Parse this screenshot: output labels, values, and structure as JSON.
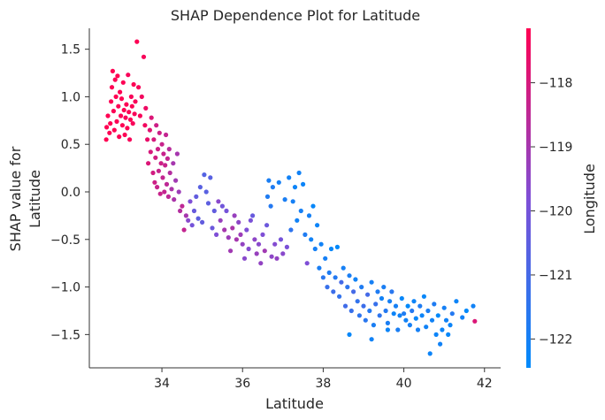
{
  "chart_data": {
    "type": "scatter",
    "title": "SHAP Dependence Plot for Latitude",
    "xlabel": "Latitude",
    "ylabel_line1": "SHAP value for",
    "ylabel_line2": "Latitude",
    "xlim": [
      32.2,
      42.4
    ],
    "ylim": [
      -1.85,
      1.72
    ],
    "xticks": [
      34,
      36,
      38,
      40,
      42
    ],
    "xtick_labels": [
      "34",
      "36",
      "38",
      "40",
      "42"
    ],
    "yticks": [
      1.5,
      1.0,
      0.5,
      0.0,
      -0.5,
      -1.0,
      -1.5
    ],
    "ytick_labels": [
      "1.5",
      "1.0",
      "0.5",
      "0.0",
      "−0.5",
      "−1.0",
      "−1.5"
    ],
    "grid": false,
    "colorbar": {
      "label": "Longitude",
      "range": [
        -122.45,
        -117.15
      ],
      "ticks": [
        -118,
        -119,
        -120,
        -121,
        -122
      ],
      "tick_labels": [
        "−118",
        "−119",
        "−120",
        "−121",
        "−122"
      ],
      "low_color": "#008afb",
      "mid_color": "#7f4fd6",
      "high_color": "#ff0052"
    },
    "points": [
      [
        32.62,
        0.55,
        -117.1
      ],
      [
        32.63,
        0.68,
        -117.1
      ],
      [
        32.66,
        0.8,
        -117.1
      ],
      [
        32.7,
        0.62,
        -117.2
      ],
      [
        32.72,
        0.72,
        -117.1
      ],
      [
        32.74,
        0.95,
        -117.2
      ],
      [
        32.76,
        1.1,
        -117.2
      ],
      [
        32.78,
        1.27,
        -117.1
      ],
      [
        32.8,
        0.85,
        -117.2
      ],
      [
        32.82,
        0.65,
        -117.1
      ],
      [
        32.84,
        1.18,
        -117.2
      ],
      [
        32.86,
        1.0,
        -117.1
      ],
      [
        32.88,
        0.74,
        -117.2
      ],
      [
        32.9,
        1.22,
        -117.1
      ],
      [
        32.92,
        0.9,
        -117.2
      ],
      [
        32.94,
        0.58,
        -117.2
      ],
      [
        32.96,
        1.05,
        -117.1
      ],
      [
        32.98,
        0.8,
        -117.2
      ],
      [
        33.0,
        0.98,
        -117.1
      ],
      [
        33.02,
        0.7,
        -117.2
      ],
      [
        33.04,
        1.15,
        -117.2
      ],
      [
        33.06,
        0.86,
        -117.1
      ],
      [
        33.08,
        0.6,
        -117.2
      ],
      [
        33.1,
        0.78,
        -117.3
      ],
      [
        33.12,
        0.92,
        -117.2
      ],
      [
        33.14,
        0.67,
        -117.2
      ],
      [
        33.16,
        1.23,
        -117.3
      ],
      [
        33.18,
        0.84,
        -117.2
      ],
      [
        33.2,
        0.55,
        -117.3
      ],
      [
        33.22,
        0.76,
        -117.2
      ],
      [
        33.24,
        1.0,
        -117.3
      ],
      [
        33.26,
        0.9,
        -117.2
      ],
      [
        33.28,
        0.72,
        -117.3
      ],
      [
        33.3,
        1.13,
        -117.2
      ],
      [
        33.32,
        0.82,
        -117.3
      ],
      [
        33.34,
        0.95,
        -117.3
      ],
      [
        33.38,
        1.58,
        -117.2
      ],
      [
        33.42,
        1.1,
        -117.3
      ],
      [
        33.46,
        0.8,
        -117.3
      ],
      [
        33.5,
        1.0,
        -117.4
      ],
      [
        33.55,
        1.42,
        -117.3
      ],
      [
        33.58,
        0.7,
        -117.4
      ],
      [
        33.6,
        0.88,
        -117.5
      ],
      [
        33.64,
        0.55,
        -117.6
      ],
      [
        33.66,
        0.3,
        -117.9
      ],
      [
        33.7,
        0.65,
        -117.8
      ],
      [
        33.72,
        0.42,
        -118.0
      ],
      [
        33.74,
        0.78,
        -117.9
      ],
      [
        33.78,
        0.2,
        -118.1
      ],
      [
        33.8,
        0.55,
        -118.0
      ],
      [
        33.82,
        0.1,
        -118.2
      ],
      [
        33.84,
        0.36,
        -118.1
      ],
      [
        33.86,
        0.7,
        -118.2
      ],
      [
        33.88,
        0.05,
        -118.3
      ],
      [
        33.9,
        0.45,
        -118.2
      ],
      [
        33.92,
        0.22,
        -118.3
      ],
      [
        33.94,
        0.62,
        -118.2
      ],
      [
        33.96,
        -0.02,
        -118.3
      ],
      [
        33.98,
        0.3,
        -118.2
      ],
      [
        34.0,
        0.5,
        -118.3
      ],
      [
        34.02,
        0.15,
        -118.4
      ],
      [
        34.04,
        0.4,
        -118.3
      ],
      [
        34.06,
        0.0,
        -118.4
      ],
      [
        34.08,
        0.28,
        -118.3
      ],
      [
        34.1,
        0.6,
        -118.4
      ],
      [
        34.12,
        0.08,
        -118.5
      ],
      [
        34.14,
        0.35,
        -118.4
      ],
      [
        34.16,
        -0.05,
        -118.5
      ],
      [
        34.18,
        0.45,
        -118.6
      ],
      [
        34.2,
        0.2,
        -118.7
      ],
      [
        34.24,
        0.03,
        -118.9
      ],
      [
        34.28,
        0.3,
        -119.0
      ],
      [
        34.3,
        -0.08,
        -118.9
      ],
      [
        34.34,
        0.12,
        -119.1
      ],
      [
        34.38,
        0.4,
        -119.0
      ],
      [
        34.42,
        0.0,
        -119.2
      ],
      [
        34.45,
        -0.2,
        -118.7
      ],
      [
        34.5,
        -0.15,
        -118.5
      ],
      [
        34.55,
        -0.4,
        -118.4
      ],
      [
        34.6,
        -0.25,
        -119.0
      ],
      [
        34.65,
        -0.3,
        -119.6
      ],
      [
        34.7,
        -0.1,
        -119.8
      ],
      [
        34.75,
        -0.35,
        -120.0
      ],
      [
        34.8,
        -0.2,
        -120.3
      ],
      [
        34.85,
        -0.05,
        -120.4
      ],
      [
        34.9,
        -0.28,
        -120.5
      ],
      [
        34.95,
        0.05,
        -120.6
      ],
      [
        35.0,
        -0.32,
        -120.4
      ],
      [
        35.05,
        0.18,
        -120.7
      ],
      [
        35.1,
        0.0,
        -120.6
      ],
      [
        35.15,
        -0.12,
        -120.5
      ],
      [
        35.2,
        0.15,
        -120.6
      ],
      [
        35.25,
        -0.38,
        -120.2
      ],
      [
        35.3,
        -0.2,
        -120.4
      ],
      [
        35.35,
        -0.45,
        -119.8
      ],
      [
        35.4,
        -0.1,
        -119.6
      ],
      [
        35.45,
        -0.3,
        -119.3
      ],
      [
        35.5,
        -0.15,
        -120.1
      ],
      [
        35.55,
        -0.4,
        -119.0
      ],
      [
        35.6,
        -0.2,
        -120.0
      ],
      [
        35.65,
        -0.48,
        -119.2
      ],
      [
        35.7,
        -0.62,
        -119.1
      ],
      [
        35.75,
        -0.38,
        -118.9
      ],
      [
        35.8,
        -0.25,
        -119.3
      ],
      [
        35.85,
        -0.5,
        -119.0
      ],
      [
        35.9,
        -0.32,
        -119.5
      ],
      [
        35.95,
        -0.45,
        -119.2
      ],
      [
        36.0,
        -0.55,
        -119.4
      ],
      [
        36.05,
        -0.7,
        -119.6
      ],
      [
        36.1,
        -0.4,
        -119.8
      ],
      [
        36.15,
        -0.6,
        -119.7
      ],
      [
        36.2,
        -0.3,
        -119.9
      ],
      [
        36.25,
        -0.25,
        -120.3
      ],
      [
        36.3,
        -0.5,
        -119.5
      ],
      [
        36.35,
        -0.65,
        -119.3
      ],
      [
        36.4,
        -0.55,
        -119.6
      ],
      [
        36.45,
        -0.75,
        -119.4
      ],
      [
        36.5,
        -0.45,
        -119.8
      ],
      [
        36.55,
        -0.62,
        -119.1
      ],
      [
        36.6,
        -0.35,
        -120.2
      ],
      [
        36.62,
        -0.05,
        -121.8
      ],
      [
        36.65,
        0.12,
        -121.9
      ],
      [
        36.7,
        -0.15,
        -121.7
      ],
      [
        36.72,
        -0.68,
        -119.5
      ],
      [
        36.75,
        0.05,
        -121.8
      ],
      [
        36.8,
        -0.55,
        -119.7
      ],
      [
        36.85,
        -0.7,
        -119.4
      ],
      [
        36.9,
        0.1,
        -122.0
      ],
      [
        36.95,
        -0.5,
        -120.0
      ],
      [
        37.0,
        -0.65,
        -119.6
      ],
      [
        37.05,
        -0.08,
        -121.9
      ],
      [
        37.1,
        -0.58,
        -119.9
      ],
      [
        37.15,
        0.15,
        -122.1
      ],
      [
        37.2,
        -0.4,
        -121.5
      ],
      [
        37.25,
        -0.1,
        -122.0
      ],
      [
        37.3,
        0.05,
        -122.2
      ],
      [
        37.35,
        -0.3,
        -122.1
      ],
      [
        37.4,
        0.2,
        -122.1
      ],
      [
        37.45,
        -0.2,
        -122.0
      ],
      [
        37.5,
        0.08,
        -122.2
      ],
      [
        37.55,
        -0.45,
        -121.8
      ],
      [
        37.6,
        -0.75,
        -119.8
      ],
      [
        37.65,
        -0.25,
        -122.0
      ],
      [
        37.7,
        -0.5,
        -122.1
      ],
      [
        37.75,
        -0.15,
        -122.3
      ],
      [
        37.8,
        -0.6,
        -122.0
      ],
      [
        37.85,
        -0.35,
        -122.2
      ],
      [
        37.9,
        -0.8,
        -121.9
      ],
      [
        37.95,
        -0.55,
        -122.1
      ],
      [
        38.0,
        -0.9,
        -121.6
      ],
      [
        38.05,
        -0.7,
        -122.0
      ],
      [
        38.1,
        -1.0,
        -121.3
      ],
      [
        38.15,
        -0.85,
        -121.8
      ],
      [
        38.2,
        -0.6,
        -122.3
      ],
      [
        38.25,
        -1.05,
        -121.2
      ],
      [
        38.3,
        -0.9,
        -121.7
      ],
      [
        38.35,
        -0.58,
        -122.4
      ],
      [
        38.4,
        -1.1,
        -121.4
      ],
      [
        38.45,
        -0.95,
        -121.0
      ],
      [
        38.5,
        -0.8,
        -122.0
      ],
      [
        38.55,
        -1.2,
        -121.1
      ],
      [
        38.6,
        -1.0,
        -121.5
      ],
      [
        38.65,
        -0.88,
        -121.9
      ],
      [
        38.7,
        -1.25,
        -121.3
      ],
      [
        38.75,
        -1.05,
        -121.0
      ],
      [
        38.8,
        -0.92,
        -122.1
      ],
      [
        38.85,
        -1.15,
        -121.4
      ],
      [
        38.9,
        -1.3,
        -121.5
      ],
      [
        38.95,
        -1.0,
        -121.8
      ],
      [
        39.0,
        -1.2,
        -121.2
      ],
      [
        39.05,
        -1.35,
        -121.6
      ],
      [
        39.1,
        -1.08,
        -121.0
      ],
      [
        39.15,
        -1.25,
        -121.7
      ],
      [
        39.2,
        -0.95,
        -122.0
      ],
      [
        39.25,
        -1.4,
        -121.9
      ],
      [
        39.3,
        -1.18,
        -121.3
      ],
      [
        39.35,
        -1.05,
        -121.8
      ],
      [
        39.4,
        -1.3,
        -121.5
      ],
      [
        39.45,
        -1.12,
        -122.1
      ],
      [
        39.5,
        -1.0,
        -121.9
      ],
      [
        39.55,
        -1.25,
        -121.7
      ],
      [
        39.6,
        -1.38,
        -121.9
      ],
      [
        39.65,
        -1.15,
        -122.0
      ],
      [
        39.7,
        -1.05,
        -121.6
      ],
      [
        39.75,
        -1.28,
        -122.2
      ],
      [
        39.8,
        -1.2,
        -122.0
      ],
      [
        39.85,
        -1.45,
        -121.9
      ],
      [
        39.9,
        -1.3,
        -122.1
      ],
      [
        39.95,
        -1.12,
        -122.3
      ],
      [
        40.0,
        -1.28,
        -121.8
      ],
      [
        40.05,
        -1.35,
        -122.1
      ],
      [
        40.1,
        -1.2,
        -122.4
      ],
      [
        40.15,
        -1.4,
        -122.0
      ],
      [
        40.2,
        -1.25,
        -121.7
      ],
      [
        40.25,
        -1.15,
        -122.2
      ],
      [
        40.3,
        -1.33,
        -122.3
      ],
      [
        40.35,
        -1.45,
        -122.0
      ],
      [
        40.4,
        -1.2,
        -121.8
      ],
      [
        40.45,
        -1.3,
        -122.2
      ],
      [
        40.5,
        -1.1,
        -122.3
      ],
      [
        40.55,
        -1.42,
        -122.1
      ],
      [
        40.6,
        -1.25,
        -121.9
      ],
      [
        40.65,
        -1.7,
        -122.2
      ],
      [
        40.7,
        -1.35,
        -122.1
      ],
      [
        40.75,
        -1.18,
        -121.8
      ],
      [
        40.8,
        -1.5,
        -122.2
      ],
      [
        40.85,
        -1.3,
        -122.4
      ],
      [
        40.9,
        -1.6,
        -122.1
      ],
      [
        40.95,
        -1.45,
        -122.2
      ],
      [
        41.0,
        -1.22,
        -122.0
      ],
      [
        41.05,
        -1.35,
        -122.1
      ],
      [
        41.1,
        -1.5,
        -122.3
      ],
      [
        41.15,
        -1.4,
        -122.2
      ],
      [
        41.2,
        -1.28,
        -121.7
      ],
      [
        41.3,
        -1.15,
        -122.2
      ],
      [
        41.45,
        -1.32,
        -122.1
      ],
      [
        41.55,
        -1.25,
        -122.4
      ],
      [
        41.72,
        -1.2,
        -122.1
      ],
      [
        41.76,
        -1.36,
        -117.9
      ],
      [
        39.6,
        -1.45,
        -122.2
      ],
      [
        39.2,
        -1.55,
        -122.1
      ],
      [
        38.65,
        -1.5,
        -122.3
      ]
    ]
  }
}
